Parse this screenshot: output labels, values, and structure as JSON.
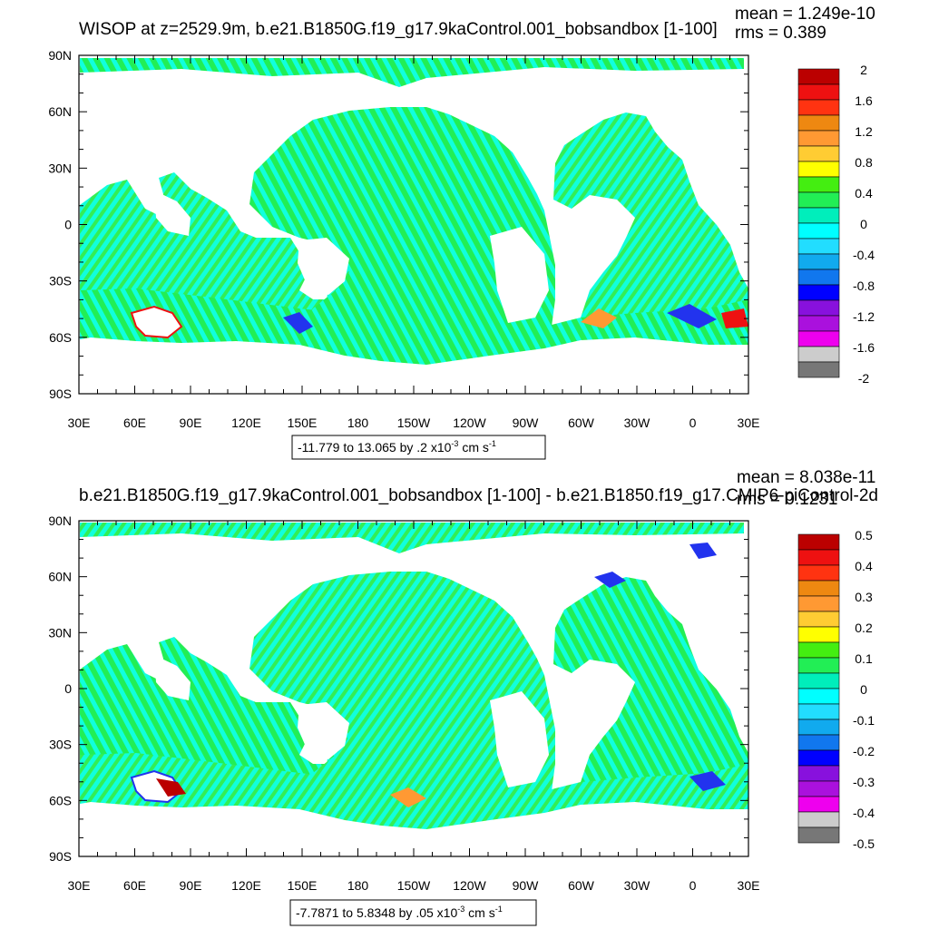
{
  "panels": [
    {
      "title": "WISOP at z=2529.9m, b.e21.B1850G.f19_g17.9kaControl.001_bobsandbox [1-100]",
      "mean_text": "mean = 1.249e-10",
      "rms_text": "rms = 0.389",
      "range_text": "-11.779 to 13.065 by .2 x10",
      "range_exp": "-3",
      "range_units": " cm s",
      "range_units_exp": "-1",
      "colorbar_labels": [
        "2",
        "1.6",
        "1.2",
        "0.8",
        "0.4",
        "0",
        "-0.4",
        "-0.8",
        "-1.2",
        "-1.6",
        "-2"
      ]
    },
    {
      "title": "b.e21.B1850G.f19_g17.9kaControl.001_bobsandbox [1-100] - b.e21.B1850.f19_g17.CMIP6-piControl-2d",
      "mean_text": "mean = 8.038e-11",
      "rms_text": "rms = 0.1231",
      "range_text": "-7.7871 to 5.8348 by .05 x10",
      "range_exp": "-3",
      "range_units": " cm s",
      "range_units_exp": "-1",
      "colorbar_labels": [
        "0.5",
        "0.4",
        "0.3",
        "0.2",
        "0.1",
        "0",
        "-0.1",
        "-0.2",
        "-0.3",
        "-0.4",
        "-0.5"
      ]
    }
  ],
  "lat_labels": [
    "90N",
    "60N",
    "30N",
    "0",
    "30S",
    "60S",
    "90S"
  ],
  "lon_labels": [
    "30E",
    "60E",
    "90E",
    "120E",
    "150E",
    "180",
    "150W",
    "120W",
    "90W",
    "60W",
    "30W",
    "0",
    "30E"
  ],
  "colors": {
    "ocean_primary": "#33ee55",
    "ocean_secondary": "#11ffdd",
    "land": "#ffffff",
    "colorbar": [
      "#bb0000",
      "#ee1111",
      "#ff3311",
      "#ee8811",
      "#ff9933",
      "#ffcc33",
      "#ffff00",
      "#44ee11",
      "#22ee55",
      "#00eebb",
      "#00ffff",
      "#22ddff",
      "#11aaee",
      "#1177ee",
      "#0000ff",
      "#8811dd",
      "#aa11dd",
      "#ee00ee",
      "#cccccc",
      "#777777"
    ]
  }
}
